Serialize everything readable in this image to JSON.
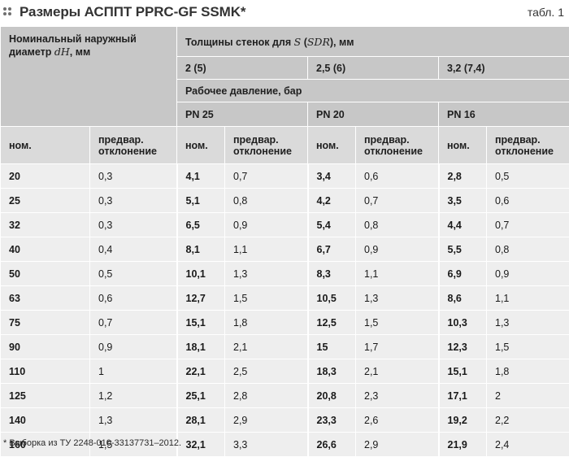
{
  "title": "Размеры АСППТ PPRC-GF SSMK*",
  "table_no": "табл. 1",
  "header": {
    "diameter": "Номинальный наружный диаметр",
    "diameter_symbol": "dН",
    "diameter_unit": ", мм",
    "thickness": "Толщины стенок для",
    "thickness_symbol": "S",
    "thickness_paren_open": " (",
    "thickness_sdr": "SDR",
    "thickness_unit": "), мм",
    "sdr_groups": [
      "2 (5)",
      "2,5 (6)",
      "3,2 (7,4)"
    ],
    "pressure": "Рабочее давление, бар",
    "pn_groups": [
      "PN 25",
      "PN 20",
      "PN 16"
    ],
    "col_nom": "ном.",
    "col_dev": "предвар. отклонение"
  },
  "rows": [
    {
      "d": "20",
      "d_dev": "0,3",
      "s1": "4,1",
      "s1_dev": "0,7",
      "s2": "3,4",
      "s2_dev": "0,6",
      "s3": "2,8",
      "s3_dev": "0,5"
    },
    {
      "d": "25",
      "d_dev": "0,3",
      "s1": "5,1",
      "s1_dev": "0,8",
      "s2": "4,2",
      "s2_dev": "0,7",
      "s3": "3,5",
      "s3_dev": "0,6"
    },
    {
      "d": "32",
      "d_dev": "0,3",
      "s1": "6,5",
      "s1_dev": "0,9",
      "s2": "5,4",
      "s2_dev": "0,8",
      "s3": "4,4",
      "s3_dev": "0,7"
    },
    {
      "d": "40",
      "d_dev": "0,4",
      "s1": "8,1",
      "s1_dev": "1,1",
      "s2": "6,7",
      "s2_dev": "0,9",
      "s3": "5,5",
      "s3_dev": "0,8"
    },
    {
      "d": "50",
      "d_dev": "0,5",
      "s1": "10,1",
      "s1_dev": "1,3",
      "s2": "8,3",
      "s2_dev": "1,1",
      "s3": "6,9",
      "s3_dev": "0,9"
    },
    {
      "d": "63",
      "d_dev": "0,6",
      "s1": "12,7",
      "s1_dev": "1,5",
      "s2": "10,5",
      "s2_dev": "1,3",
      "s3": "8,6",
      "s3_dev": "1,1"
    },
    {
      "d": "75",
      "d_dev": "0,7",
      "s1": "15,1",
      "s1_dev": "1,8",
      "s2": "12,5",
      "s2_dev": "1,5",
      "s3": "10,3",
      "s3_dev": "1,3"
    },
    {
      "d": "90",
      "d_dev": "0,9",
      "s1": "18,1",
      "s1_dev": "2,1",
      "s2": "15",
      "s2_dev": "1,7",
      "s3": "12,3",
      "s3_dev": "1,5"
    },
    {
      "d": "110",
      "d_dev": "1",
      "s1": "22,1",
      "s1_dev": "2,5",
      "s2": "18,3",
      "s2_dev": "2,1",
      "s3": "15,1",
      "s3_dev": "1,8"
    },
    {
      "d": "125",
      "d_dev": "1,2",
      "s1": "25,1",
      "s1_dev": "2,8",
      "s2": "20,8",
      "s2_dev": "2,3",
      "s3": "17,1",
      "s3_dev": "2"
    },
    {
      "d": "140",
      "d_dev": "1,3",
      "s1": "28,1",
      "s1_dev": "2,9",
      "s2": "23,3",
      "s2_dev": "2,6",
      "s3": "19,2",
      "s3_dev": "2,2"
    },
    {
      "d": "160",
      "d_dev": "1,5",
      "s1": "32,1",
      "s1_dev": "3,3",
      "s2": "26,6",
      "s2_dev": "2,9",
      "s3": "21,9",
      "s3_dev": "2,4"
    }
  ],
  "footnote": "* Выборка из ТУ 2248-010-33137731–2012."
}
